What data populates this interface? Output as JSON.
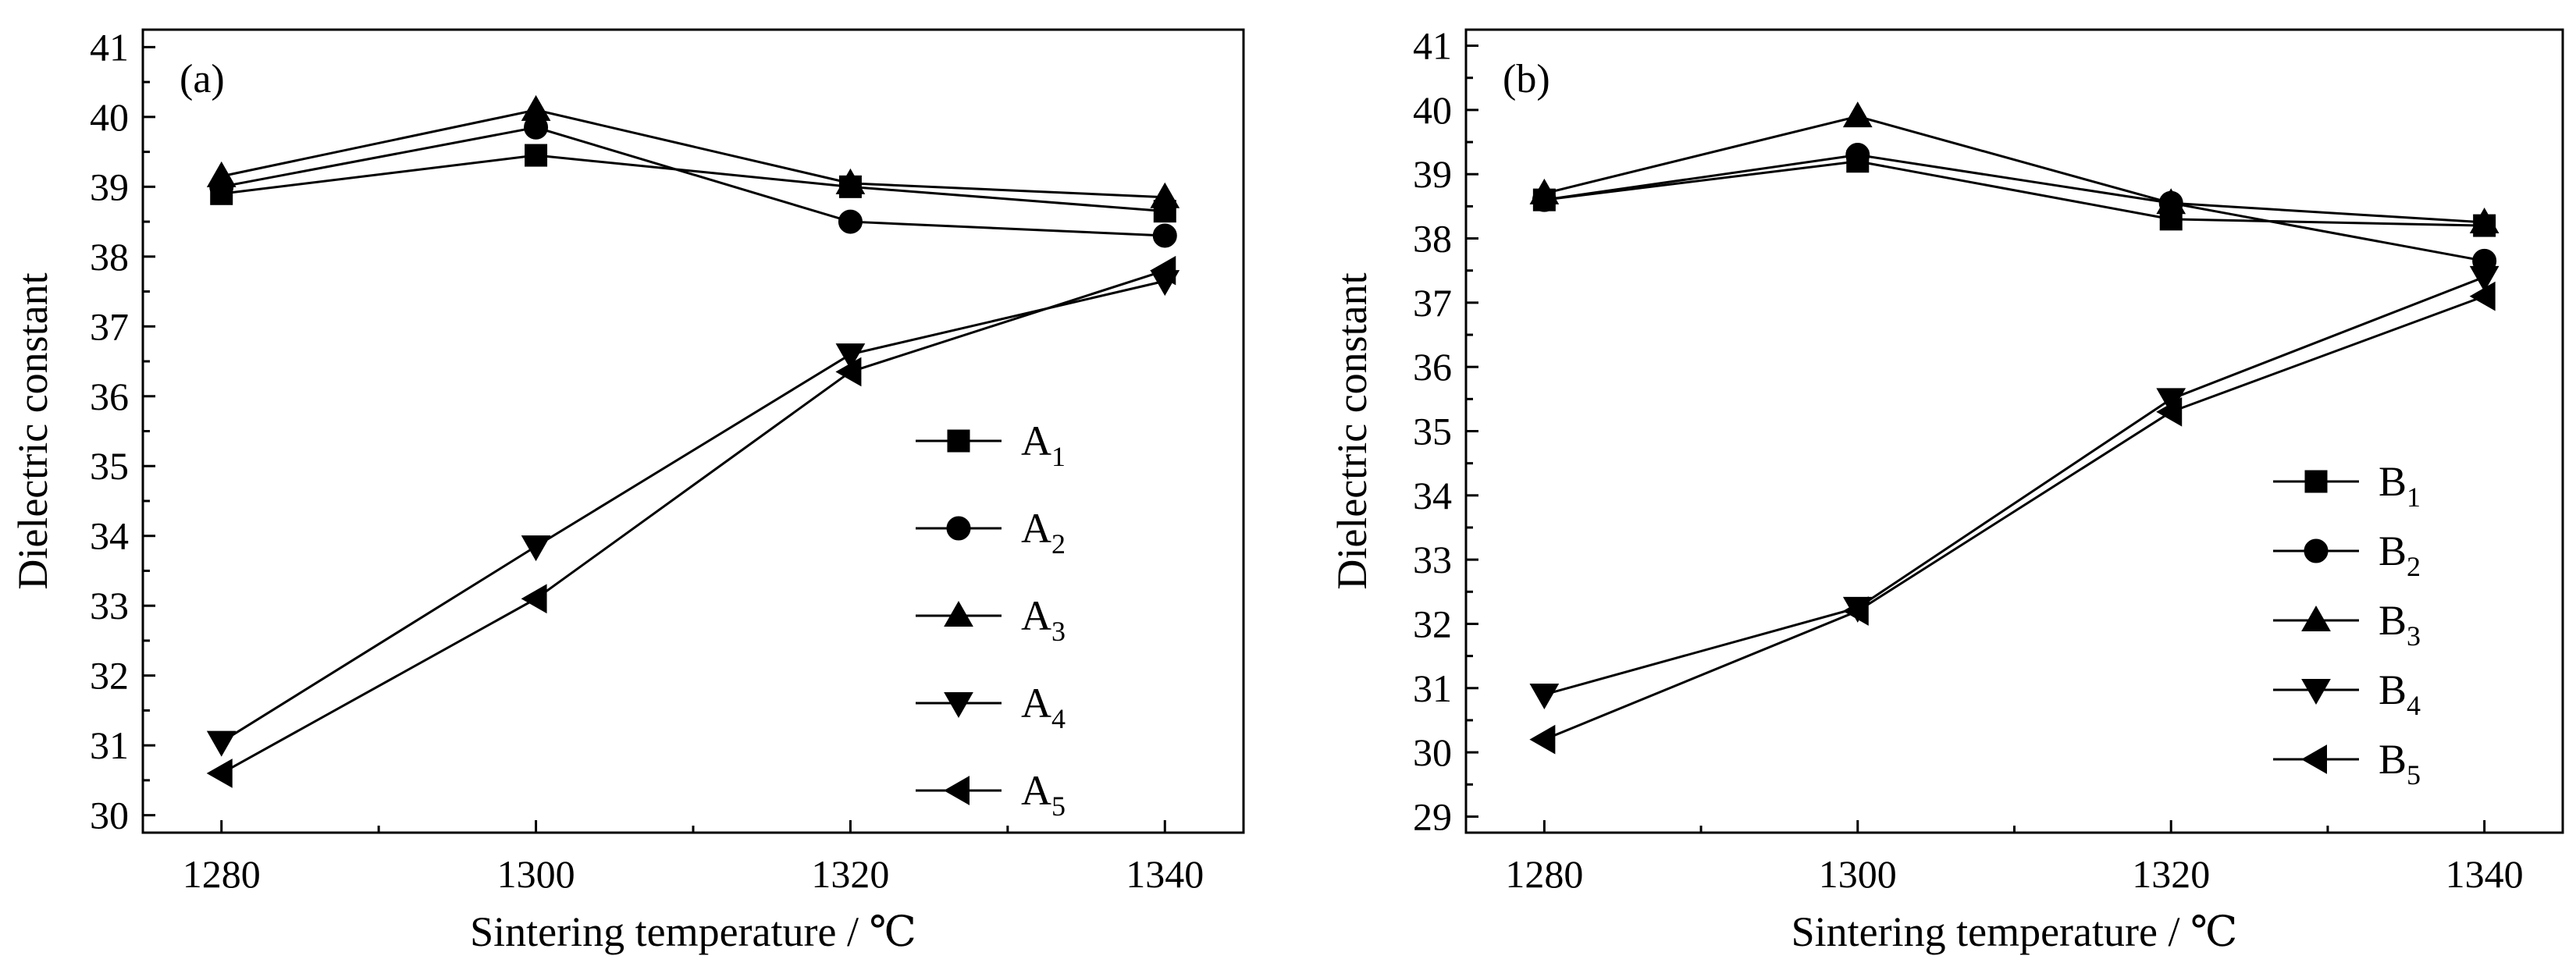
{
  "chart_data": [
    {
      "type": "line",
      "panel_label": "(a)",
      "xlabel": "Sintering temperature / ℃",
      "ylabel": "Dielectric constant",
      "xlim": [
        1275,
        1345
      ],
      "ylim": [
        29.75,
        41.25
      ],
      "xticks": [
        1280,
        1300,
        1320,
        1340
      ],
      "yticks": [
        30,
        31,
        32,
        33,
        34,
        35,
        36,
        37,
        38,
        39,
        40,
        41
      ],
      "x": [
        1280,
        1300,
        1320,
        1340
      ],
      "legend_position": "right",
      "series": [
        {
          "name_base": "A",
          "name_sub": "1",
          "marker": "square",
          "values": [
            38.9,
            39.45,
            39.0,
            38.65
          ]
        },
        {
          "name_base": "A",
          "name_sub": "2",
          "marker": "circle",
          "values": [
            39.0,
            39.85,
            38.5,
            38.3
          ]
        },
        {
          "name_base": "A",
          "name_sub": "3",
          "marker": "triangle-up",
          "values": [
            39.15,
            40.1,
            39.05,
            38.85
          ]
        },
        {
          "name_base": "A",
          "name_sub": "4",
          "marker": "triangle-down",
          "values": [
            31.05,
            33.85,
            36.6,
            37.65
          ]
        },
        {
          "name_base": "A",
          "name_sub": "5",
          "marker": "triangle-left",
          "values": [
            30.6,
            33.1,
            36.35,
            37.8
          ]
        }
      ]
    },
    {
      "type": "line",
      "panel_label": "(b)",
      "xlabel": "Sintering temperature / ℃",
      "ylabel": "Dielectric constant",
      "xlim": [
        1275,
        1345
      ],
      "ylim": [
        28.75,
        41.25
      ],
      "xticks": [
        1280,
        1300,
        1320,
        1340
      ],
      "yticks": [
        29,
        30,
        31,
        32,
        33,
        34,
        35,
        36,
        37,
        38,
        39,
        40,
        41
      ],
      "x": [
        1280,
        1300,
        1320,
        1340
      ],
      "legend_position": "bottom-right",
      "series": [
        {
          "name_base": "B",
          "name_sub": "1",
          "marker": "square",
          "values": [
            38.6,
            39.2,
            38.3,
            38.2
          ]
        },
        {
          "name_base": "B",
          "name_sub": "2",
          "marker": "circle",
          "values": [
            38.6,
            39.3,
            38.55,
            37.65
          ]
        },
        {
          "name_base": "B",
          "name_sub": "3",
          "marker": "triangle-up",
          "values": [
            38.7,
            39.9,
            38.55,
            38.25
          ]
        },
        {
          "name_base": "B",
          "name_sub": "4",
          "marker": "triangle-down",
          "values": [
            30.9,
            32.25,
            35.5,
            37.4
          ]
        },
        {
          "name_base": "B",
          "name_sub": "5",
          "marker": "triangle-left",
          "values": [
            30.2,
            32.2,
            35.3,
            37.1
          ]
        }
      ]
    }
  ]
}
